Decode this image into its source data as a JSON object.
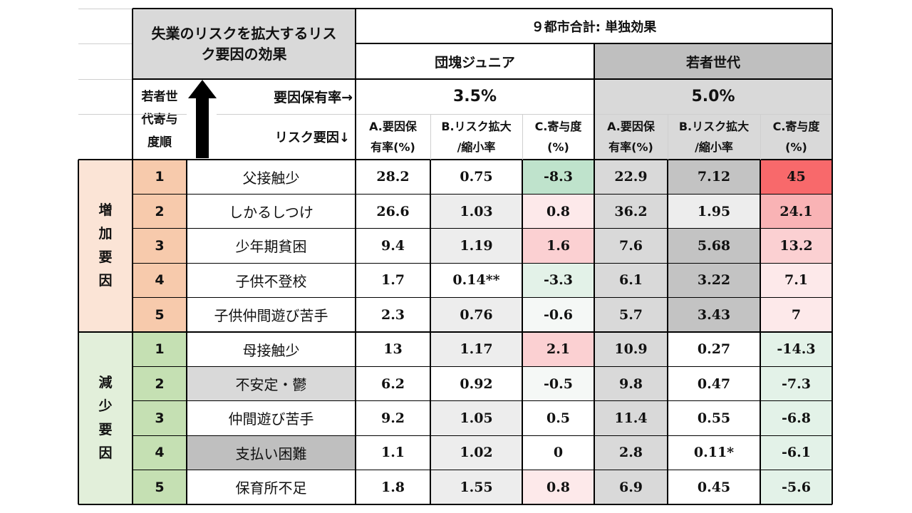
{
  "title": "失業のリスクを拡大するリスク要因の効果",
  "title_line1": "失業のリスクを拡大するリス",
  "title_line2": "ク要因の効果",
  "top_header": "９都市合計: 単独効果",
  "groups": [
    "団塊ジュニア",
    "若者世代"
  ],
  "prevalence": [
    "3.5%",
    "5.0%"
  ],
  "prevalence_label": "要因保有率→",
  "risk_factor_label": "リスク要因↓",
  "rank_label": "若者世代寄与度順",
  "rank_label_lines": [
    "若者世",
    "代寄与",
    "度順"
  ],
  "columns": {
    "a": [
      "A.要因保",
      "有率(%)"
    ],
    "b": [
      "B.リスク拡大",
      "/縮小率"
    ],
    "c": [
      "C.寄与度",
      "(%)"
    ]
  },
  "sections": [
    {
      "label": "増加要因",
      "label_chars": [
        "増",
        "加",
        "要",
        "因"
      ]
    },
    {
      "label": "減少要因",
      "label_chars": [
        "減",
        "少",
        "要",
        "因"
      ]
    }
  ],
  "rows": [
    {
      "rank": "1",
      "factor": "父接触少",
      "ja": "28.2",
      "jb": "0.75",
      "jc": "-8.3",
      "ya": "22.9",
      "yb": "7.12",
      "yc": "45"
    },
    {
      "rank": "2",
      "factor": "しかるしつけ",
      "ja": "26.6",
      "jb": "1.03",
      "jc": "0.8",
      "ya": "36.2",
      "yb": "1.95",
      "yc": "24.1"
    },
    {
      "rank": "3",
      "factor": "少年期貧困",
      "ja": "9.4",
      "jb": "1.19",
      "jc": "1.6",
      "ya": "7.6",
      "yb": "5.68",
      "yc": "13.2"
    },
    {
      "rank": "4",
      "factor": "子供不登校",
      "ja": "1.7",
      "jb": "0.14**",
      "jc": "-3.3",
      "ya": "6.1",
      "yb": "3.22",
      "yc": "7.1"
    },
    {
      "rank": "5",
      "factor": "子供仲間遊び苦手",
      "ja": "2.3",
      "jb": "0.76",
      "jc": "-0.6",
      "ya": "5.7",
      "yb": "3.43",
      "yc": "7"
    },
    {
      "rank": "1",
      "factor": "母接触少",
      "ja": "13",
      "jb": "1.17",
      "jc": "2.1",
      "ya": "10.9",
      "yb": "0.27",
      "yc": "-14.3"
    },
    {
      "rank": "2",
      "factor": "不安定・鬱",
      "ja": "6.2",
      "jb": "0.92",
      "jc": "-0.5",
      "ya": "9.8",
      "yb": "0.47",
      "yc": "-7.3"
    },
    {
      "rank": "3",
      "factor": "仲間遊び苦手",
      "ja": "9.2",
      "jb": "1.05",
      "jc": "0.5",
      "ya": "11.4",
      "yb": "0.55",
      "yc": "-6.8"
    },
    {
      "rank": "4",
      "factor": "支払い困難",
      "ja": "1.1",
      "jb": "1.02",
      "jc": "0",
      "ya": "2.8",
      "yb": "0.11*",
      "yc": "-6.1"
    },
    {
      "rank": "5",
      "factor": "保育所不足",
      "ja": "1.8",
      "jb": "1.55",
      "jc": "0.8",
      "ya": "6.9",
      "yb": "0.45",
      "yc": "-5.6"
    }
  ],
  "colors": {
    "header_gray": "#d9d9d9",
    "increase_label": "#fbe4d6",
    "increase_rank": "#f7caac",
    "decrease_label": "#e2efda",
    "decrease_rank": "#c5e0b3",
    "cell_light_gray": "#ededed",
    "cell_gray": "#d9d9d9",
    "cell_mid_gray": "#c3c3c3",
    "cell_dark_gray": "#bfbfbf",
    "red_strong": "#f8696b",
    "red_mid": "#f9b3b5",
    "red_light": "#fbd0d2",
    "red_pale": "#fde9ea",
    "green_mid": "#bfe3cc",
    "green_pale": "#e3f2e8",
    "near_white": "#f5f8f6"
  },
  "icons": {
    "rank_arrow": "up-arrow-icon"
  }
}
